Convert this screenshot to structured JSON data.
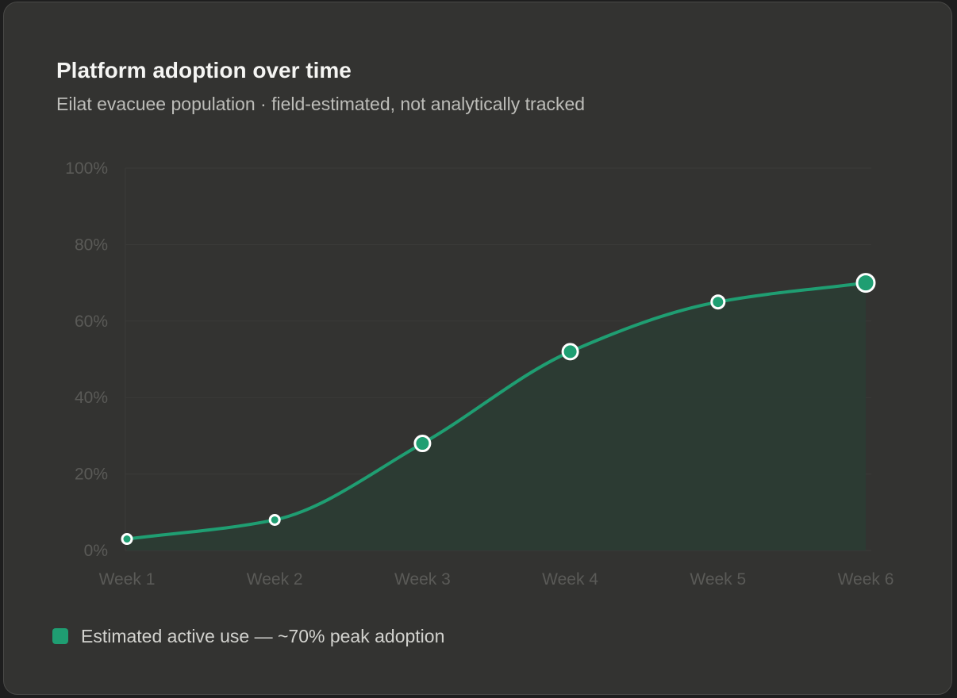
{
  "title": "Platform adoption over time",
  "subtitle": "Eilat evacuee population · field-estimated, not analytically tracked",
  "legend": {
    "label": "Estimated active use — ~70% peak adoption"
  },
  "colors": {
    "series": "#1f9e72",
    "point_fill": "#1f9e72",
    "point_stroke": "#ffffff",
    "area_fill": "#2b3c34",
    "grid": "#3b3b39",
    "tick_text": "#5a5a57"
  },
  "chart_data": {
    "type": "area",
    "title": "Platform adoption over time",
    "subtitle": "Eilat evacuee population · field-estimated, not analytically tracked",
    "xlabel": "",
    "ylabel": "",
    "categories": [
      "Week 1",
      "Week 2",
      "Week 3",
      "Week 4",
      "Week 5",
      "Week 6"
    ],
    "y_ticks": [
      "0%",
      "20%",
      "40%",
      "60%",
      "80%",
      "100%"
    ],
    "ylim": [
      0,
      100
    ],
    "grid": true,
    "legend_position": "bottom-left",
    "series": [
      {
        "name": "Estimated active use — ~70% peak adoption",
        "values": [
          3,
          8,
          28,
          52,
          65,
          70
        ]
      }
    ]
  }
}
